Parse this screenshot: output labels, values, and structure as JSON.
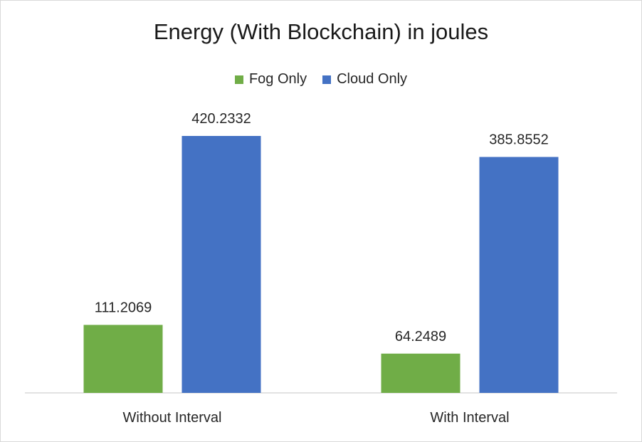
{
  "chart_data": {
    "type": "bar",
    "title": "Energy (With Blockchain) in joules",
    "categories": [
      "Without Interval",
      "With Interval"
    ],
    "series": [
      {
        "name": "Fog Only",
        "values": [
          111.2069,
          64.2489
        ],
        "color": "#70ad47"
      },
      {
        "name": "Cloud Only",
        "values": [
          420.2332,
          385.8552
        ],
        "color": "#4472c4"
      }
    ],
    "data_labels": [
      [
        "111.2069",
        "64.2489"
      ],
      [
        "420.2332",
        "385.8552"
      ]
    ],
    "ylim": [
      0,
      420.2332
    ],
    "grid": false,
    "legend_position": "top"
  }
}
